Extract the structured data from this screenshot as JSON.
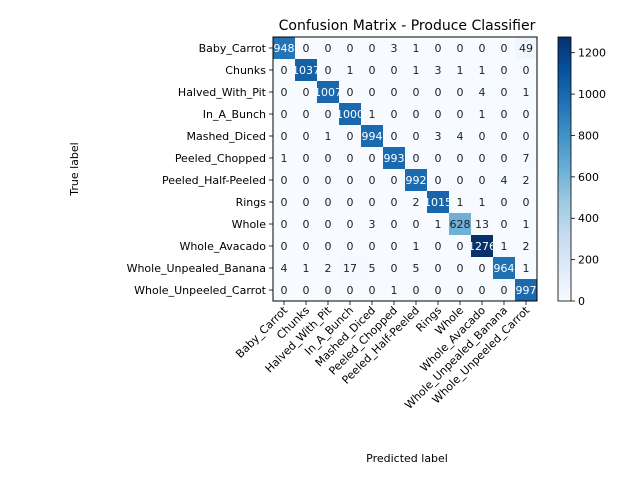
{
  "chart_data": {
    "type": "heatmap",
    "title": "Confusion Matrix - Produce Classifier",
    "xlabel": "Predicted label",
    "ylabel": "True label",
    "labels": [
      "Baby_Carrot",
      "Chunks",
      "Halved_With_Pit",
      "In_A_Bunch",
      "Mashed_Diced",
      "Peeled_Chopped",
      "Peeled_Half-Peeled",
      "Rings",
      "Whole",
      "Whole_Avacado",
      "Whole_Unpealed_Banana",
      "Whole_Unpeeled_Carrot"
    ],
    "matrix": [
      [
        948,
        0,
        0,
        0,
        0,
        3,
        1,
        0,
        0,
        0,
        0,
        49
      ],
      [
        0,
        1037,
        0,
        1,
        0,
        0,
        1,
        3,
        1,
        1,
        0,
        0
      ],
      [
        0,
        0,
        1007,
        0,
        0,
        0,
        0,
        0,
        0,
        4,
        0,
        1
      ],
      [
        0,
        0,
        0,
        1000,
        1,
        0,
        0,
        0,
        0,
        1,
        0,
        0
      ],
      [
        0,
        0,
        1,
        0,
        994,
        0,
        0,
        3,
        4,
        0,
        0,
        0
      ],
      [
        1,
        0,
        0,
        0,
        0,
        993,
        0,
        0,
        0,
        0,
        0,
        7
      ],
      [
        0,
        0,
        0,
        0,
        0,
        0,
        992,
        0,
        0,
        0,
        4,
        2
      ],
      [
        0,
        0,
        0,
        0,
        0,
        0,
        2,
        1015,
        1,
        1,
        0,
        0
      ],
      [
        0,
        0,
        0,
        0,
        3,
        0,
        0,
        1,
        628,
        13,
        0,
        1
      ],
      [
        0,
        0,
        0,
        0,
        0,
        0,
        1,
        0,
        0,
        1276,
        1,
        2
      ],
      [
        4,
        1,
        2,
        17,
        5,
        0,
        5,
        0,
        0,
        0,
        964,
        1
      ],
      [
        0,
        0,
        0,
        0,
        0,
        1,
        0,
        0,
        0,
        0,
        0,
        997
      ]
    ],
    "colorbar": {
      "range": [
        0,
        1276
      ],
      "ticks": [
        0,
        200,
        400,
        600,
        800,
        1000,
        1200
      ]
    },
    "colormap": [
      "#f7fbff",
      "#deebf7",
      "#c6dbef",
      "#9ecae1",
      "#6baed6",
      "#4292c6",
      "#2171b5",
      "#08519c",
      "#08306b"
    ]
  }
}
